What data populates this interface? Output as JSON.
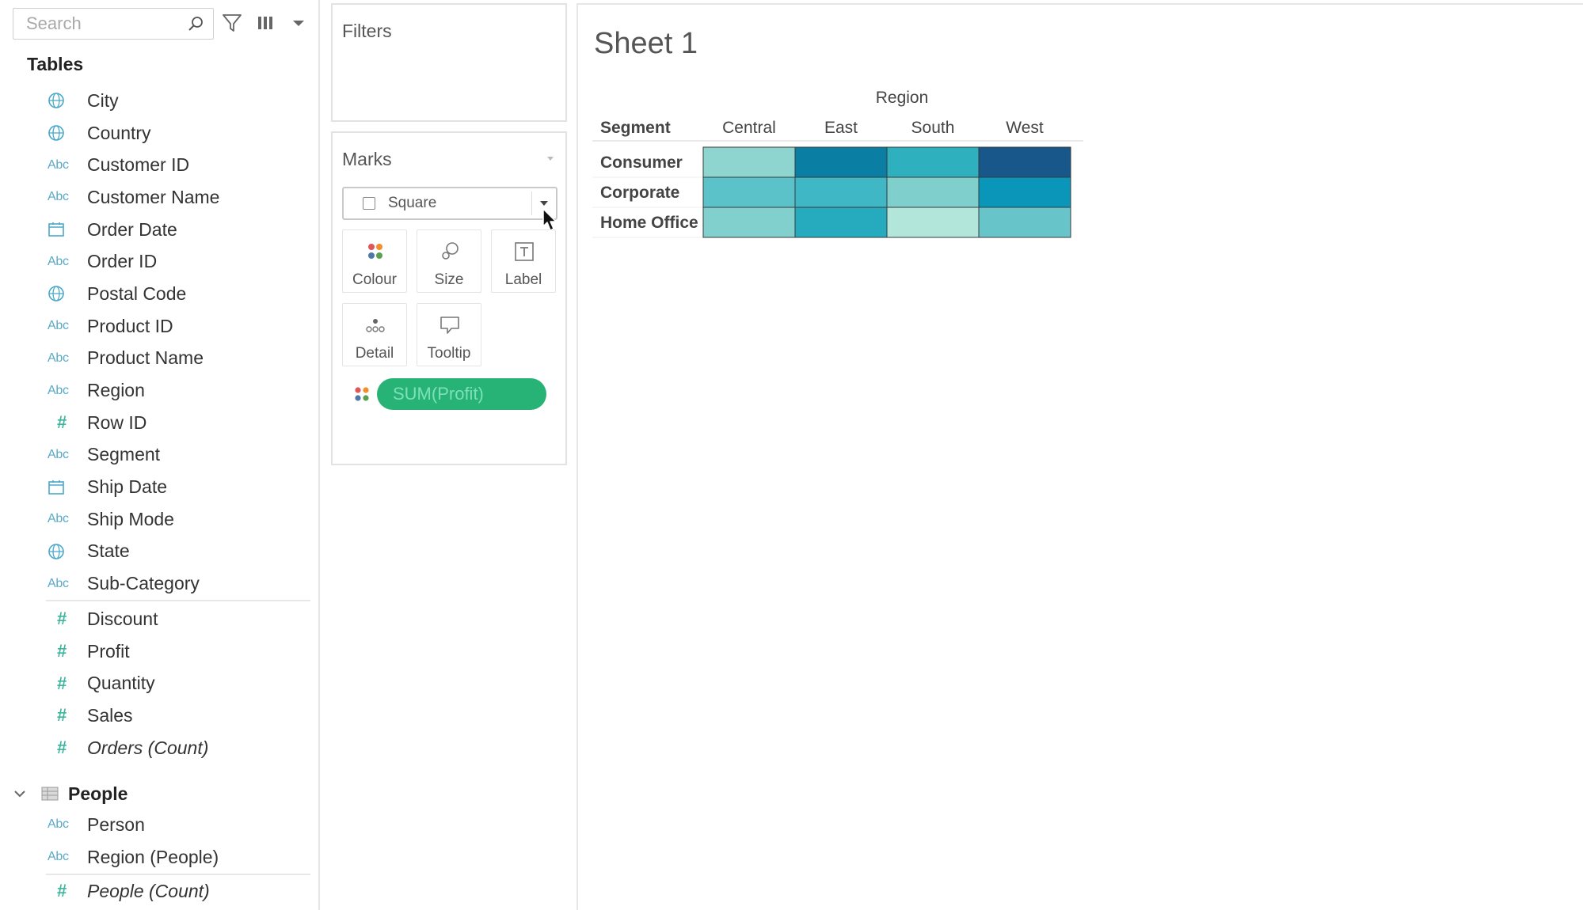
{
  "search": {
    "placeholder": "Search"
  },
  "data_pane": {
    "tables_title": "Tables",
    "fields": [
      {
        "label": "City",
        "icon": "globe-icon"
      },
      {
        "label": "Country",
        "icon": "globe-icon"
      },
      {
        "label": "Customer ID",
        "icon": "abc-icon"
      },
      {
        "label": "Customer Name",
        "icon": "abc-icon"
      },
      {
        "label": "Order Date",
        "icon": "calendar-icon"
      },
      {
        "label": "Order ID",
        "icon": "abc-icon"
      },
      {
        "label": "Postal Code",
        "icon": "globe-icon"
      },
      {
        "label": "Product ID",
        "icon": "abc-icon"
      },
      {
        "label": "Product Name",
        "icon": "abc-icon"
      },
      {
        "label": "Region",
        "icon": "abc-icon"
      },
      {
        "label": "Row ID",
        "icon": "hash-icon"
      },
      {
        "label": "Segment",
        "icon": "abc-icon"
      },
      {
        "label": "Ship Date",
        "icon": "calendar-icon"
      },
      {
        "label": "Ship Mode",
        "icon": "abc-icon"
      },
      {
        "label": "State",
        "icon": "globe-icon"
      },
      {
        "label": "Sub-Category",
        "icon": "abc-icon"
      }
    ],
    "measures": [
      {
        "label": "Discount",
        "icon": "hash-icon"
      },
      {
        "label": "Profit",
        "icon": "hash-icon"
      },
      {
        "label": "Quantity",
        "icon": "hash-icon"
      },
      {
        "label": "Sales",
        "icon": "hash-icon"
      },
      {
        "label": "Orders (Count)",
        "icon": "hash-icon",
        "italic": true
      }
    ],
    "people_table": {
      "title": "People",
      "fields": [
        {
          "label": "Person",
          "icon": "abc-icon"
        },
        {
          "label": "Region (People)",
          "icon": "abc-icon"
        }
      ],
      "measures": [
        {
          "label": "People (Count)",
          "icon": "hash-icon",
          "italic": true
        }
      ]
    },
    "abc_text": "Abc"
  },
  "filters": {
    "title": "Filters"
  },
  "marks": {
    "title": "Marks",
    "mark_type": "Square",
    "buttons": {
      "colour": "Colour",
      "size": "Size",
      "label": "Label",
      "detail": "Detail",
      "tooltip": "Tooltip"
    },
    "colour_pill": "SUM(Profit)"
  },
  "sheet": {
    "title": "Sheet 1"
  },
  "colors": {
    "pill": "#27b376",
    "teal_light": "#b2e6da",
    "teal_dark": "#17578a"
  },
  "chart_data": {
    "type": "heatmap",
    "column_header": "Region",
    "row_header": "Segment",
    "columns": [
      "Central",
      "East",
      "South",
      "West"
    ],
    "rows": [
      "Consumer",
      "Corporate",
      "Home Office"
    ],
    "cell_colors": [
      [
        "#8fd5cf",
        "#0b7ea3",
        "#2fb0be",
        "#17578a"
      ],
      [
        "#5cc2c9",
        "#40b7c5",
        "#7fcfcd",
        "#0996b8"
      ],
      [
        "#82d0cd",
        "#26aabd",
        "#b2e6da",
        "#67c5ca"
      ]
    ]
  }
}
